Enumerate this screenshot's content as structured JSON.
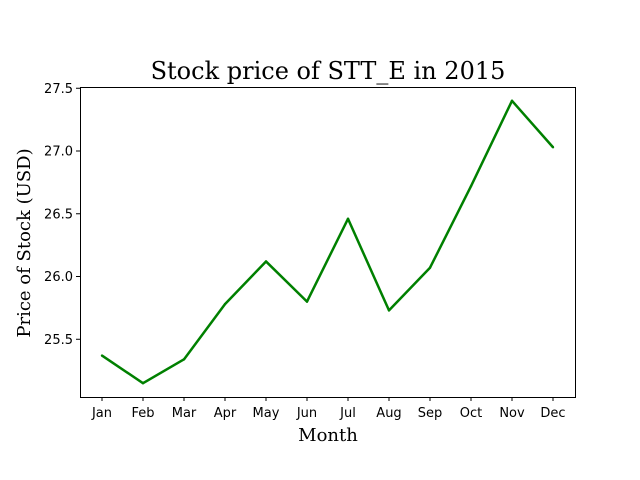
{
  "chart_data": {
    "type": "line",
    "title": "Stock price of STT_E in 2015",
    "xlabel": "Month",
    "ylabel": "Price of Stock (USD)",
    "categories": [
      "Jan",
      "Feb",
      "Mar",
      "Apr",
      "May",
      "Jun",
      "Jul",
      "Aug",
      "Sep",
      "Oct",
      "Nov",
      "Dec"
    ],
    "series": [
      {
        "color": "#008000",
        "values": [
          25.37,
          25.15,
          25.34,
          25.78,
          26.12,
          25.8,
          26.46,
          25.73,
          26.07,
          26.72,
          27.4,
          27.03
        ]
      }
    ],
    "ylim": [
      25.04,
      27.51
    ],
    "yticks": [
      {
        "value": 25.5,
        "label": "25.5"
      },
      {
        "value": 26.0,
        "label": "26.0"
      },
      {
        "value": 26.5,
        "label": "26.5"
      },
      {
        "value": 27.0,
        "label": "27.0"
      },
      {
        "value": 27.5,
        "label": "27.5"
      }
    ],
    "grid": false,
    "legend": false
  }
}
